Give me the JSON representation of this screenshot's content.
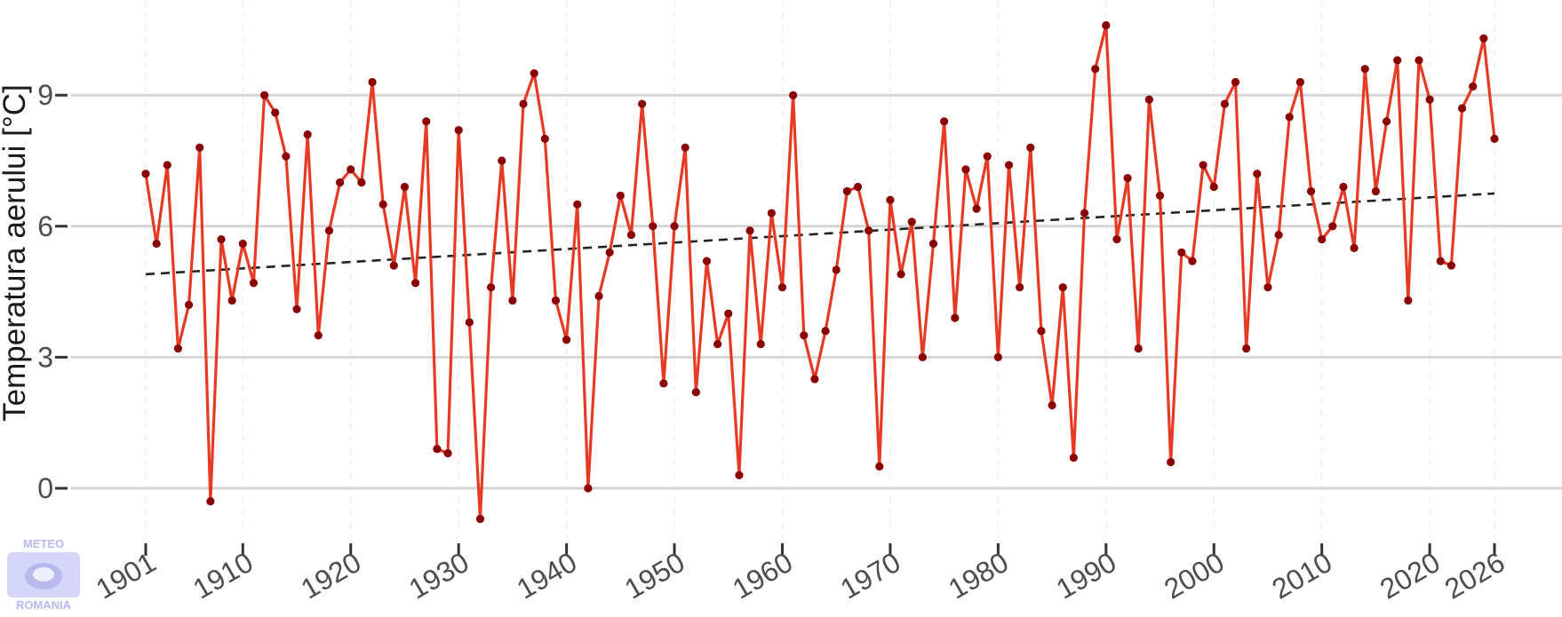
{
  "chart_data": {
    "type": "line",
    "title": "",
    "xlabel": "",
    "ylabel": "Temperatura aerului [°C]",
    "xlim": [
      1901,
      2026
    ],
    "ylim": [
      -0.7,
      10.6
    ],
    "x_ticks": [
      "1901",
      "1910",
      "1920",
      "1930",
      "1940",
      "1950",
      "1960",
      "1970",
      "1980",
      "1990",
      "2000",
      "2010",
      "2020",
      "2026"
    ],
    "y_ticks": [
      "0",
      "3",
      "6",
      "9"
    ],
    "grid": "horizontal major lines, dashed vertical minor lines",
    "legend": "none",
    "colors": {
      "line": "#e63a24",
      "points": "#8b0000",
      "trend": "#222222",
      "grid_major": "#d6d6d6",
      "grid_minor": "#ececec"
    },
    "series": [
      {
        "x": [
          1901,
          1902,
          1903,
          1904,
          1905,
          1906,
          1907,
          1908,
          1909,
          1910,
          1911,
          1912,
          1913,
          1914,
          1915,
          1916,
          1917,
          1918,
          1919,
          1920,
          1921,
          1922,
          1923,
          1924,
          1925,
          1926,
          1927,
          1928,
          1929,
          1930,
          1931,
          1932,
          1933,
          1934,
          1935,
          1936,
          1937,
          1938,
          1939,
          1940,
          1941,
          1942,
          1943,
          1944,
          1945,
          1946,
          1947,
          1948,
          1949,
          1950,
          1951,
          1952,
          1953,
          1954,
          1955,
          1956,
          1957,
          1958,
          1959,
          1960,
          1961,
          1962,
          1963,
          1964,
          1965,
          1966,
          1967,
          1968,
          1969,
          1970,
          1971,
          1972,
          1973,
          1974,
          1975,
          1976,
          1977,
          1978,
          1979,
          1980,
          1981,
          1982,
          1983,
          1984,
          1985,
          1986,
          1987,
          1988,
          1989,
          1990,
          1991,
          1992,
          1993,
          1994,
          1995,
          1996,
          1997,
          1998,
          1999,
          2000,
          2001,
          2002,
          2003,
          2004,
          2005,
          2006,
          2007,
          2008,
          2009,
          2010,
          2011,
          2012,
          2013,
          2014,
          2015,
          2016,
          2017,
          2018,
          2019,
          2020,
          2021,
          2022,
          2023,
          2024,
          2025,
          2026
        ],
        "values": [
          7.2,
          5.6,
          7.4,
          3.2,
          4.2,
          7.8,
          -0.3,
          5.7,
          4.3,
          5.6,
          4.7,
          9.0,
          8.6,
          7.6,
          4.1,
          8.1,
          3.5,
          5.9,
          7.0,
          7.3,
          7.0,
          9.3,
          6.5,
          5.1,
          6.9,
          4.7,
          8.4,
          0.9,
          0.8,
          8.2,
          3.8,
          -0.7,
          4.6,
          7.5,
          4.3,
          8.8,
          9.5,
          8.0,
          4.3,
          3.4,
          6.5,
          0.0,
          4.4,
          5.4,
          6.7,
          5.8,
          8.8,
          6.0,
          2.4,
          6.0,
          7.8,
          2.2,
          5.2,
          3.3,
          4.0,
          0.3,
          5.9,
          3.3,
          6.3,
          4.6,
          9.0,
          3.5,
          2.5,
          3.6,
          5.0,
          6.8,
          6.9,
          5.9,
          0.5,
          6.6,
          4.9,
          6.1,
          3.0,
          5.6,
          8.4,
          3.9,
          7.3,
          6.4,
          7.6,
          3.0,
          7.4,
          4.6,
          7.8,
          3.6,
          1.9,
          4.6,
          0.7,
          6.3,
          9.6,
          10.6,
          5.7,
          7.1,
          3.2,
          8.9,
          6.7,
          0.6,
          5.4,
          5.2,
          7.4,
          6.9,
          8.8,
          9.3,
          3.2,
          7.2,
          4.6,
          5.8,
          8.5,
          9.3,
          6.8,
          5.7,
          6.0,
          6.9,
          5.5,
          9.6,
          6.8,
          8.4,
          9.8,
          4.3,
          9.8,
          8.9,
          5.2,
          5.1,
          8.7,
          9.2,
          10.3,
          8.0
        ]
      }
    ],
    "trend": {
      "style": "dashed",
      "x": [
        1901,
        2026
      ],
      "values": [
        4.9,
        6.75
      ]
    }
  },
  "logo": {
    "top_text": "METEO",
    "bottom_text": "ROMANIA"
  }
}
